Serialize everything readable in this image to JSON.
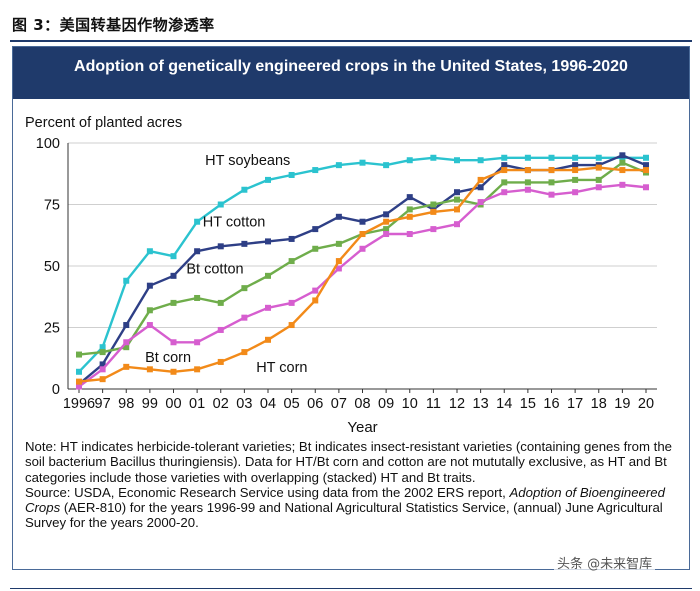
{
  "figure_caption": "图 3：美国转基因作物渗透率",
  "watermark": "头条 @未来智库",
  "chart_data": {
    "type": "line",
    "title": "Adoption of genetically engineered crops in the United States, 1996-2020",
    "ylabel": "Percent of planted acres",
    "xlabel": "Year",
    "ylim": [
      0,
      100
    ],
    "yticks": [
      "0",
      "25",
      "50",
      "75",
      "100"
    ],
    "categories": [
      "1996",
      "97",
      "98",
      "99",
      "00",
      "01",
      "02",
      "03",
      "04",
      "05",
      "06",
      "07",
      "08",
      "09",
      "10",
      "11",
      "12",
      "13",
      "14",
      "15",
      "16",
      "17",
      "18",
      "19",
      "20"
    ],
    "series": [
      {
        "name": "HT soybeans",
        "color": "#2bc3cf",
        "values": [
          7,
          17,
          44,
          56,
          54,
          68,
          75,
          81,
          85,
          87,
          89,
          91,
          92,
          91,
          93,
          94,
          93,
          93,
          94,
          94,
          94,
          94,
          94,
          94,
          94
        ]
      },
      {
        "name": "HT cotton",
        "color": "#2e3f86",
        "values": [
          2,
          10,
          26,
          42,
          46,
          56,
          58,
          59,
          60,
          61,
          65,
          70,
          68,
          71,
          78,
          73,
          80,
          82,
          91,
          89,
          89,
          91,
          91,
          95,
          91
        ]
      },
      {
        "name": "Bt cotton",
        "color": "#6fad4b",
        "values": [
          14,
          15,
          17,
          32,
          35,
          37,
          35,
          41,
          46,
          52,
          57,
          59,
          63,
          65,
          73,
          75,
          77,
          75,
          84,
          84,
          84,
          85,
          85,
          92,
          88
        ]
      },
      {
        "name": "Bt corn",
        "color": "#d65ecf",
        "values": [
          1,
          8,
          19,
          26,
          19,
          19,
          24,
          29,
          33,
          35,
          40,
          49,
          57,
          63,
          63,
          65,
          67,
          76,
          80,
          81,
          79,
          80,
          82,
          83,
          82
        ]
      },
      {
        "name": "HT corn",
        "color": "#f28a19",
        "values": [
          3,
          4,
          9,
          8,
          7,
          8,
          11,
          15,
          20,
          26,
          36,
          52,
          63,
          68,
          70,
          72,
          73,
          85,
          89,
          89,
          89,
          89,
          90,
          89,
          89
        ]
      }
    ]
  },
  "notes": [
    "Note: HT indicates herbicide-tolerant varieties; Bt indicates insect-resistant varieties (containing genes from the soil bacterium Bacillus thuringiensis). Data for HT/Bt corn and cotton are not mututally exclusive, as HT and Bt categories include those varieties with overlapping (stacked) HT and Bt traits."
  ],
  "source": {
    "before": "Source: USDA, Economic Research Service using data from the 2002 ERS report, ",
    "italic": "Adoption of Bioengineered Crops",
    "after": " (AER-810) for the years 1996-99 and National Agricultural Statistics Service, (annual) June Agricultural Survey for the years 2000-20."
  }
}
